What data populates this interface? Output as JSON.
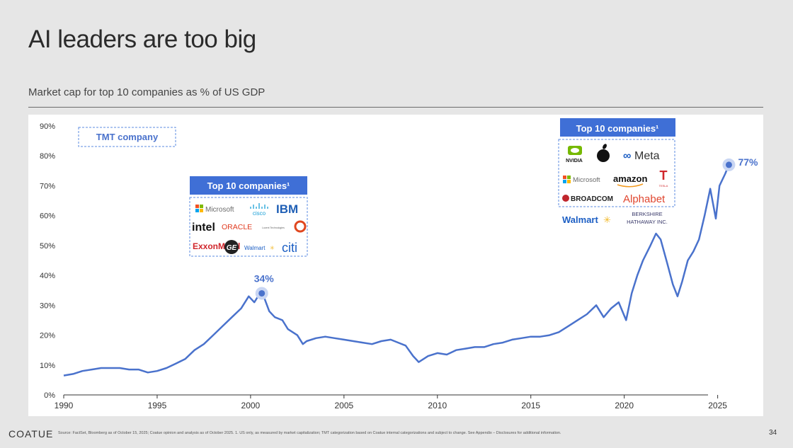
{
  "slide": {
    "title": "AI leaders are too big",
    "footer_logo": "COATUE",
    "footer_source": "Source: FactSet, Bloomberg as of October 15, 2025; Coatue opinion and analysis as of October 2025. 1. US only, as measured by market capitalization; TMT categorization based on Coatue internal categorizations and subject to change. See Appendix – Disclosures for additional information.",
    "page_number": "34"
  },
  "colors": {
    "line": "#4a72cc",
    "badge": "#3f6fd6",
    "dash": "#5b8be0",
    "callout": "#4a72cc"
  },
  "chart_data": {
    "type": "line",
    "title": "Market cap for top 10 companies as % of US GDP",
    "xlabel": "",
    "ylabel": "",
    "xlim": [
      1990,
      2026
    ],
    "ylim": [
      0,
      90
    ],
    "x_ticks": [
      "1990",
      "1995",
      "2000",
      "2005",
      "2010",
      "2015",
      "2020",
      "2025"
    ],
    "y_ticks": [
      "0%",
      "10%",
      "20%",
      "30%",
      "40%",
      "50%",
      "60%",
      "70%",
      "80%",
      "90%"
    ],
    "grid": false,
    "series": [
      {
        "name": "",
        "x": [
          1990,
          1990.5,
          1991,
          1991.5,
          1992,
          1992.5,
          1993,
          1993.5,
          1994,
          1994.5,
          1995,
          1995.5,
          1996,
          1996.5,
          1997,
          1997.5,
          1998,
          1998.5,
          1999,
          1999.5,
          1999.9,
          2000.2,
          2000.5,
          2000.7,
          2001,
          2001.3,
          2001.7,
          2002,
          2002.5,
          2002.8,
          2003,
          2003.5,
          2004,
          2004.5,
          2005,
          2005.5,
          2006,
          2006.5,
          2007,
          2007.5,
          2007.9,
          2008.3,
          2008.7,
          2009,
          2009.5,
          2010,
          2010.5,
          2011,
          2011.5,
          2012,
          2012.5,
          2013,
          2013.5,
          2014,
          2014.5,
          2015,
          2015.5,
          2016,
          2016.5,
          2017,
          2017.5,
          2018,
          2018.5,
          2018.9,
          2019.3,
          2019.7,
          2020.1,
          2020.4,
          2020.7,
          2021,
          2021.4,
          2021.7,
          2021.95,
          2022.3,
          2022.6,
          2022.85,
          2023.1,
          2023.4,
          2023.7,
          2024,
          2024.3,
          2024.6,
          2024.9,
          2025.1,
          2025.4,
          2025.6
        ],
        "values": [
          6.5,
          7,
          8,
          8.5,
          9,
          9,
          9,
          8.5,
          8.5,
          7.5,
          8,
          9,
          10.5,
          12,
          15,
          17,
          20,
          23,
          26,
          29,
          33,
          31,
          34,
          33,
          28,
          26,
          25,
          22,
          20,
          17,
          18,
          19,
          19.5,
          19,
          18.5,
          18,
          17.5,
          17,
          18,
          18.5,
          17.5,
          16.5,
          13,
          11,
          13,
          14,
          13.5,
          15,
          15.5,
          16,
          16,
          17,
          17.5,
          18.5,
          19,
          19.5,
          19.5,
          20,
          21,
          23,
          25,
          27,
          30,
          26,
          29,
          31,
          25,
          34,
          40,
          45,
          50,
          54,
          52,
          44,
          37,
          33,
          38,
          45,
          48,
          52,
          60,
          69,
          59,
          70,
          74,
          77
        ]
      }
    ],
    "annotations": [
      {
        "label": "34%",
        "x": 2000.6,
        "y": 34
      },
      {
        "label": "77%",
        "x": 2025.6,
        "y": 77
      }
    ],
    "legend": {
      "label": "TMT company"
    }
  },
  "boxes": [
    {
      "header": "Top 10 companies¹",
      "logos": [
        {
          "text": "Microsoft",
          "icon": "microsoft-icon",
          "color": "#6b6b6b"
        },
        {
          "text": "cisco",
          "icon": "cisco-icon",
          "color": "#1ba0d7"
        },
        {
          "text": "IBM",
          "icon": "ibm-logo",
          "color": "#1f5fb5"
        },
        {
          "text": "intel",
          "icon": "intel-logo",
          "color": "#111111"
        },
        {
          "text": "ORACLE",
          "icon": "oracle-logo",
          "color": "#e03a1f"
        },
        {
          "text": "Lucent Technologies",
          "icon": "lucent-logo",
          "color": "#666666"
        },
        {
          "text": "",
          "icon": "lucent-ring-icon",
          "color": "#e0471f"
        },
        {
          "text": "ExxonMobil",
          "icon": "exxon-logo",
          "color": "#d0262c"
        },
        {
          "text": "GE",
          "icon": "ge-icon",
          "color": "#222222"
        },
        {
          "text": "Walmart",
          "icon": "walmart-logo",
          "color": "#1d5fc4"
        },
        {
          "text": "citi",
          "icon": "citi-logo",
          "color": "#1d5fc4"
        }
      ]
    },
    {
      "header": "Top 10 companies¹",
      "logos": [
        {
          "text": "NVIDIA",
          "icon": "nvidia-icon",
          "color": "#76b900"
        },
        {
          "text": "",
          "icon": "apple-icon",
          "color": "#111111"
        },
        {
          "text": "Meta",
          "icon": "meta-icon",
          "color": "#1d5fc4"
        },
        {
          "text": "Microsoft",
          "icon": "microsoft-icon",
          "color": "#6b6b6b"
        },
        {
          "text": "amazon",
          "icon": "amazon-logo",
          "color": "#111111"
        },
        {
          "text": "TESLA",
          "icon": "tesla-icon",
          "color": "#d0262c"
        },
        {
          "text": "BROADCOM",
          "icon": "broadcom-logo",
          "color": "#c0262c"
        },
        {
          "text": "Alphabet",
          "icon": "alphabet-logo",
          "color": "#e0462f"
        },
        {
          "text": "Walmart",
          "icon": "walmart-logo",
          "color": "#1d5fc4"
        },
        {
          "text": "BERKSHIRE HATHAWAY INC.",
          "icon": "berkshire-logo",
          "color": "#3a3a6a"
        }
      ]
    }
  ]
}
